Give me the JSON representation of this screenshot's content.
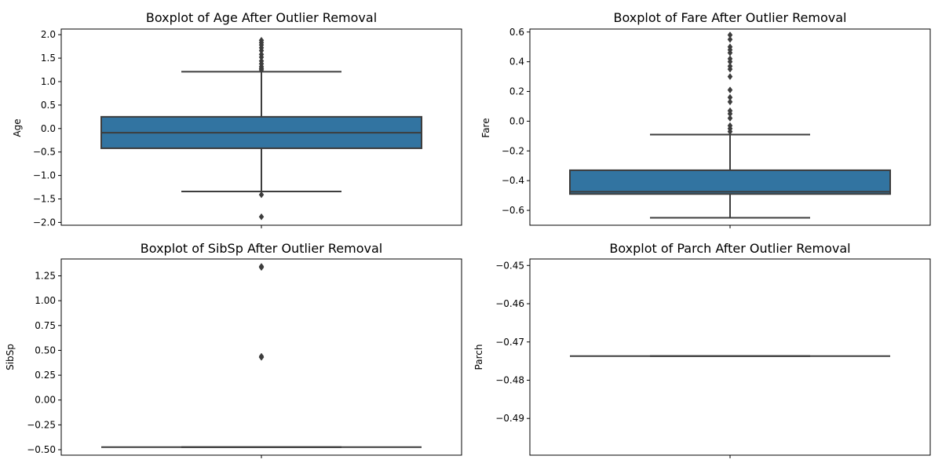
{
  "colors": {
    "box_fill": "#3274a1",
    "line": "#3d3d3d",
    "axis": "#000000",
    "background": "#ffffff"
  },
  "chart_data": [
    {
      "type": "box",
      "title": "Boxplot of Age After Outlier Removal",
      "ylabel": "Age",
      "ylim": [
        -2.06,
        2.12
      ],
      "yticks": [
        2.0,
        1.5,
        1.0,
        0.5,
        0.0,
        -0.5,
        -1.0,
        -1.5,
        -2.0
      ],
      "ytick_labels": [
        "2.0",
        "1.5",
        "1.0",
        "0.5",
        "0.0",
        "−0.5",
        "−1.0",
        "−1.5",
        "−2.0"
      ],
      "box": {
        "whisker_low": -1.34,
        "q1": -0.42,
        "median": -0.09,
        "q3": 0.25,
        "whisker_high": 1.21
      },
      "outliers": [
        1.88,
        1.83,
        1.78,
        1.72,
        1.66,
        1.58,
        1.52,
        1.44,
        1.38,
        1.32,
        1.28,
        1.25,
        -1.41,
        -1.88
      ],
      "grid": false
    },
    {
      "type": "box",
      "title": "Boxplot of Fare After Outlier Removal",
      "ylabel": "Fare",
      "ylim": [
        -0.7,
        0.62
      ],
      "yticks": [
        0.6,
        0.4,
        0.2,
        0.0,
        -0.2,
        -0.4,
        -0.6
      ],
      "ytick_labels": [
        "0.6",
        "0.4",
        "0.2",
        "0.0",
        "−0.2",
        "−0.4",
        "−0.6"
      ],
      "box": {
        "whisker_low": -0.65,
        "q1": -0.49,
        "median": -0.475,
        "q3": -0.33,
        "whisker_high": -0.09
      },
      "outliers": [
        0.58,
        0.55,
        0.5,
        0.48,
        0.46,
        0.42,
        0.4,
        0.37,
        0.35,
        0.3,
        0.21,
        0.16,
        0.13,
        0.07,
        0.05,
        0.02,
        -0.03,
        -0.05,
        -0.07
      ],
      "grid": false
    },
    {
      "type": "box",
      "title": "Boxplot of SibSp After Outlier Removal",
      "ylabel": "SibSp",
      "ylim": [
        -0.555,
        1.42
      ],
      "yticks": [
        1.25,
        1.0,
        0.75,
        0.5,
        0.25,
        0.0,
        -0.25,
        -0.5
      ],
      "ytick_labels": [
        "1.25",
        "1.00",
        "0.75",
        "0.50",
        "0.25",
        "0.00",
        "−0.25",
        "−0.50"
      ],
      "box": {
        "whisker_low": -0.474,
        "q1": -0.474,
        "median": -0.474,
        "q3": -0.474,
        "whisker_high": -0.474
      },
      "outliers": [
        1.345,
        1.335,
        0.44,
        0.43
      ],
      "grid": false
    },
    {
      "type": "box",
      "title": "Boxplot of Parch After Outlier Removal",
      "ylabel": "Parch",
      "ylim": [
        -0.4996,
        -0.4483
      ],
      "yticks": [
        -0.45,
        -0.46,
        -0.47,
        -0.48,
        -0.49
      ],
      "ytick_labels": [
        "−0.45",
        "−0.46",
        "−0.47",
        "−0.48",
        "−0.49"
      ],
      "box": {
        "whisker_low": -0.4737,
        "q1": -0.4737,
        "median": -0.4737,
        "q3": -0.4737,
        "whisker_high": -0.4737
      },
      "outliers": [],
      "grid": false
    }
  ]
}
